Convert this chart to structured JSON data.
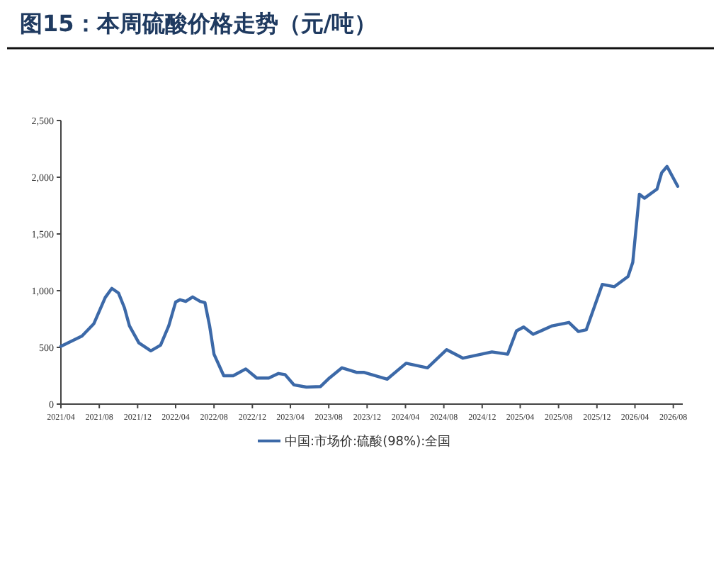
{
  "chart_data": {
    "type": "line",
    "title": "图15：本周硫酸价格走势（元/吨）",
    "series": [
      {
        "name": "中国:市场价:硫酸(98%):全国",
        "color": "#3c69a8",
        "x": [
          "2021-04-01",
          "2021-06-07",
          "2021-07-15",
          "2021-08-20",
          "2021-09-10",
          "2021-10-01",
          "2021-10-20",
          "2021-11-05",
          "2021-12-05",
          "2022-01-12",
          "2022-02-12",
          "2022-03-10",
          "2022-04-01",
          "2022-04-15",
          "2022-05-03",
          "2022-05-25",
          "2022-06-18",
          "2022-07-03",
          "2022-07-18",
          "2022-08-01",
          "2022-09-01",
          "2022-10-01",
          "2022-11-10",
          "2022-12-15",
          "2023-01-22",
          "2023-02-22",
          "2023-03-15",
          "2023-04-12",
          "2023-05-22",
          "2023-07-06",
          "2023-08-03",
          "2023-09-12",
          "2023-10-28",
          "2023-11-20",
          "2024-02-03",
          "2024-04-03",
          "2024-06-10",
          "2024-08-10",
          "2024-10-01",
          "2025-01-01",
          "2025-02-20",
          "2025-03-20",
          "2025-04-12",
          "2025-05-12",
          "2025-07-12",
          "2025-09-03",
          "2025-10-03",
          "2025-10-28",
          "2025-12-18",
          "2026-01-25",
          "2026-03-10",
          "2026-03-25",
          "2026-04-15",
          "2026-05-01",
          "2026-06-10",
          "2026-06-25",
          "2026-07-12",
          "2026-08-15"
        ],
        "values": [
          510,
          600,
          710,
          940,
          1020,
          980,
          850,
          690,
          540,
          470,
          520,
          690,
          900,
          920,
          905,
          945,
          905,
          895,
          690,
          440,
          250,
          250,
          310,
          230,
          230,
          270,
          260,
          170,
          150,
          155,
          230,
          320,
          280,
          280,
          220,
          360,
          320,
          480,
          405,
          460,
          440,
          645,
          680,
          615,
          690,
          720,
          640,
          655,
          1055,
          1035,
          1125,
          1250,
          1850,
          1815,
          1895,
          2040,
          2095,
          1920
        ]
      }
    ],
    "xlim": [
      "2021-04-01",
      "2026-08-31"
    ],
    "xticks": [
      {
        "value": "2021-04",
        "label": "2021/04"
      },
      {
        "value": "2021-08",
        "label": "2021/08"
      },
      {
        "value": "2021-12",
        "label": "2021/12"
      },
      {
        "value": "2022-04",
        "label": "2022/04"
      },
      {
        "value": "2022-08",
        "label": "2022/08"
      },
      {
        "value": "2022-12",
        "label": "2022/12"
      },
      {
        "value": "2023-04",
        "label": "2023/04"
      },
      {
        "value": "2023-08",
        "label": "2023/08"
      },
      {
        "value": "2023-12",
        "label": "2023/12"
      },
      {
        "value": "2024-04",
        "label": "2024/04"
      },
      {
        "value": "2024-08",
        "label": "2024/08"
      },
      {
        "value": "2024-12",
        "label": "2024/12"
      },
      {
        "value": "2025-04",
        "label": "2025/04"
      },
      {
        "value": "2025-08",
        "label": "2025/08"
      },
      {
        "value": "2025-12",
        "label": "2025/12"
      },
      {
        "value": "2026-04",
        "label": "2026/04"
      },
      {
        "value": "2026-08",
        "label": "2026/08"
      }
    ],
    "ylim": [
      0,
      2500
    ],
    "yticks": [
      0,
      500,
      {
        "value": 1000,
        "label": "1,000"
      },
      {
        "value": 1500,
        "label": "1,500"
      },
      {
        "value": 2000,
        "label": "2,000"
      },
      {
        "value": 2500,
        "label": "2,500"
      }
    ],
    "legend": "bottom",
    "grid": false,
    "marker": "none",
    "line_style": "solid"
  }
}
